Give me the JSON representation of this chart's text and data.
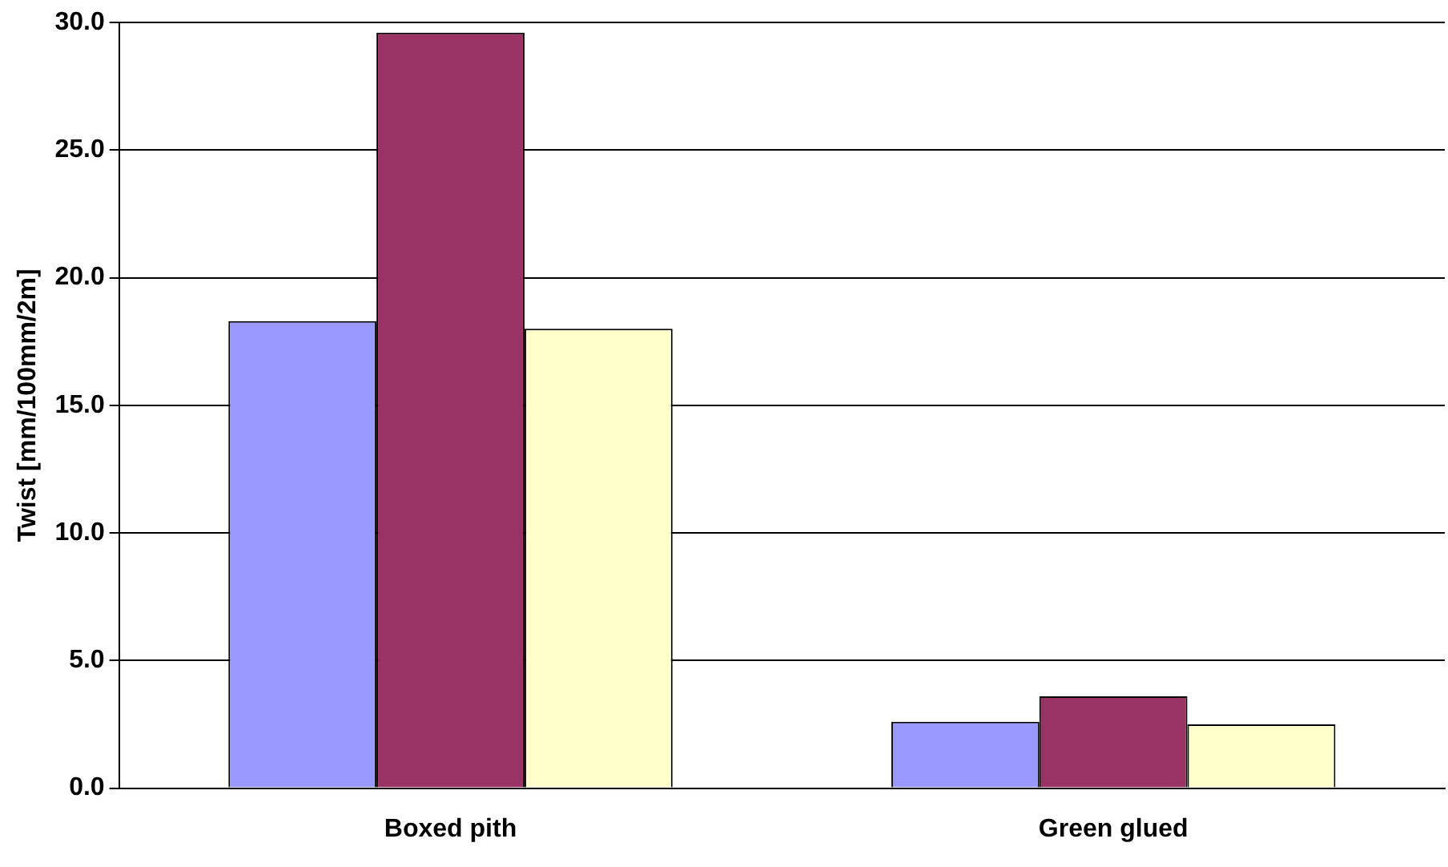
{
  "chart_data": {
    "type": "bar",
    "ylabel": "Twist [mm/100mm/2m]",
    "categories": [
      "Boxed pith",
      "Green glued"
    ],
    "series": [
      {
        "color": "#9999ff",
        "values": [
          18.3,
          2.6
        ]
      },
      {
        "color": "#993366",
        "values": [
          29.6,
          3.6
        ]
      },
      {
        "color": "#ffffcc",
        "values": [
          18.0,
          2.5
        ]
      }
    ],
    "ylim": [
      0,
      30
    ],
    "yticks": [
      {
        "value": 0,
        "label": "0.0"
      },
      {
        "value": 5,
        "label": "5.0"
      },
      {
        "value": 10,
        "label": "10.0"
      },
      {
        "value": 15,
        "label": "15.0"
      },
      {
        "value": 20,
        "label": "20.0"
      },
      {
        "value": 25,
        "label": "25.0"
      },
      {
        "value": 30,
        "label": "30.0"
      }
    ],
    "grid": "y",
    "legend": false
  }
}
